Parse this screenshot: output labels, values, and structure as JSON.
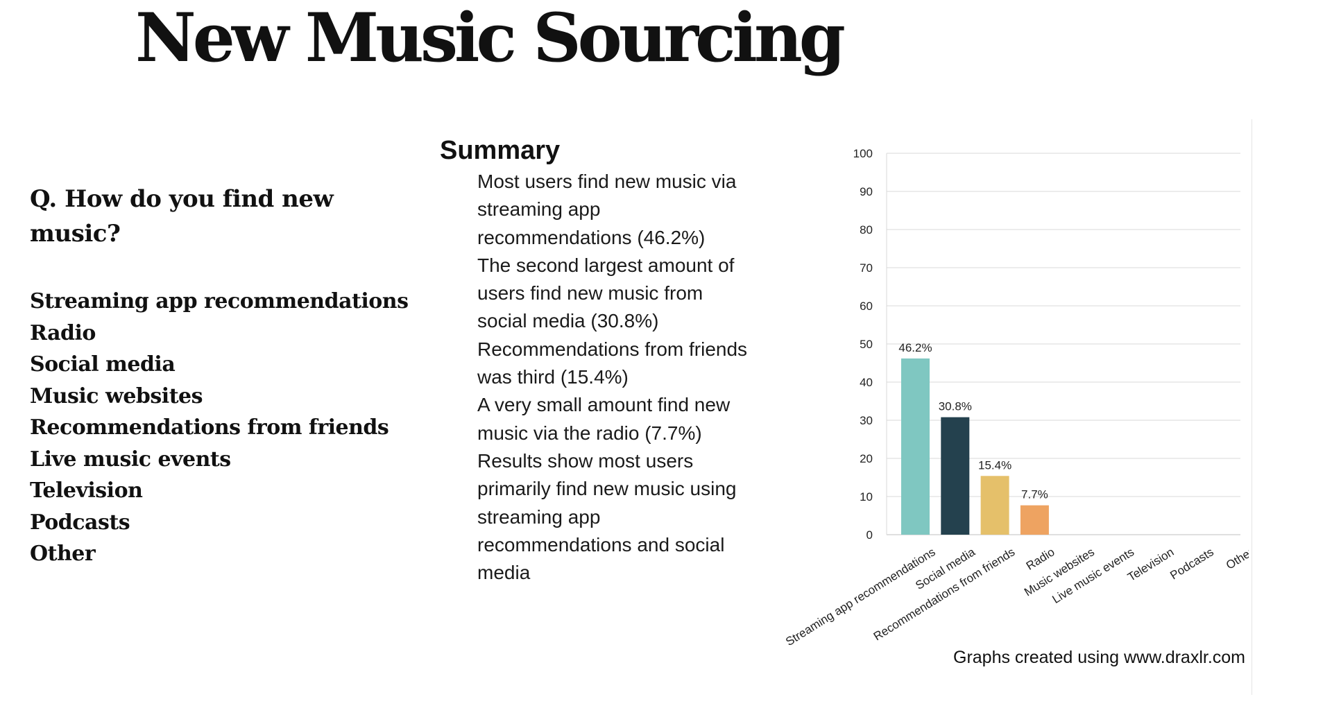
{
  "page": {
    "title": "New Music Sourcing",
    "question": "Q. How do you find new music?",
    "options": [
      "Streaming app recommendations",
      "Radio",
      "Social media",
      "Music websites",
      "Recommendations from friends",
      "Live music events",
      "Television",
      "Podcasts",
      "Other"
    ],
    "summary": {
      "heading": "Summary",
      "bullets": [
        "Most users find new music via streaming app recommendations (46.2%)",
        "The second largest amount of users find new music from social media (30.8%)",
        "Recommendations from friends was third (15.4%)",
        "A very small amount find new music via the radio (7.7%)",
        "Results show most users primarily find new music using streaming app recommendations and social media"
      ]
    },
    "credit": "Graphs created using www.draxlr.com"
  },
  "chart_data": {
    "type": "bar",
    "categories": [
      "Streaming app recommendations",
      "Social media",
      "Recommendations from friends",
      "Radio",
      "Music websites",
      "Live music events",
      "Television",
      "Podcasts",
      "Other"
    ],
    "values": [
      46.2,
      30.8,
      15.4,
      7.7,
      0,
      0,
      0,
      0,
      0
    ],
    "data_labels": [
      "46.2%",
      "30.8%",
      "15.4%",
      "7.7%",
      "",
      "",
      "",
      "",
      ""
    ],
    "colors": [
      "#7fc7c1",
      "#24414e",
      "#e5c06a",
      "#eea361",
      "#7fc7c1",
      "#7fc7c1",
      "#7fc7c1",
      "#7fc7c1",
      "#7fc7c1"
    ],
    "title": "",
    "xlabel": "",
    "ylabel": "",
    "ylim": [
      0,
      100
    ],
    "yticks": [
      0,
      10,
      20,
      30,
      40,
      50,
      60,
      70,
      80,
      90,
      100
    ],
    "grid": true,
    "legend": "none"
  }
}
